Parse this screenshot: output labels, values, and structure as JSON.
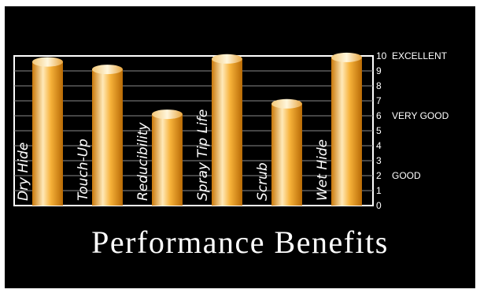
{
  "chart_data": {
    "type": "bar",
    "title": "Performance Benefits",
    "categories": [
      "Dry Hide",
      "Touch-Up",
      "Reducibility",
      "Spray Tip Life",
      "Scrub",
      "Wet Hide"
    ],
    "values": [
      9.6,
      9.1,
      6.1,
      9.8,
      6.8,
      9.9
    ],
    "ylim": [
      0,
      10
    ],
    "yticks": [
      0,
      1,
      2,
      3,
      4,
      5,
      6,
      7,
      8,
      9,
      10
    ],
    "rating_labels": [
      {
        "value": 10,
        "label": "EXCELLENT"
      },
      {
        "value": 6,
        "label": "VERY GOOD"
      },
      {
        "value": 2,
        "label": "GOOD"
      }
    ],
    "grid": true,
    "colors": {
      "bar": "#f5a623",
      "bar_highlight": "#fff2cc",
      "background": "#000000",
      "text": "#ffffff"
    }
  }
}
